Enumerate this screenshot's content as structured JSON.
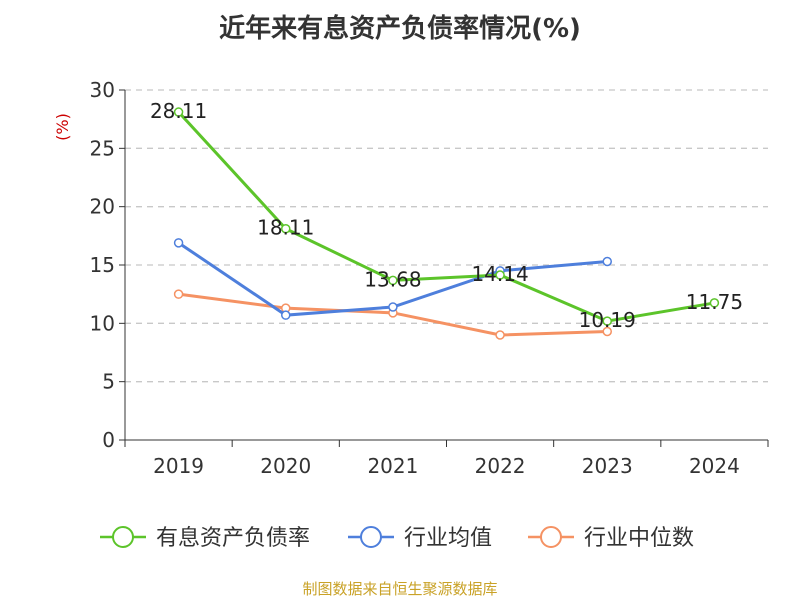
{
  "title": "近年来有息资产负债率情况(%)",
  "source": "制图数据来自恒生聚源数据库",
  "chart_data": {
    "type": "line",
    "title": "近年来有息资产负债率情况(%)",
    "ylabel": "(%)",
    "ylim": [
      0,
      30
    ],
    "yticks": [
      0,
      5,
      10,
      15,
      20,
      25,
      30
    ],
    "categories": [
      "2019",
      "2020",
      "2021",
      "2022",
      "2023",
      "2024"
    ],
    "grid": true,
    "legend_position": "bottom",
    "series": [
      {
        "name": "有息资产负债率",
        "color": "#5cc42a",
        "values": [
          28.11,
          18.11,
          13.68,
          14.14,
          10.19,
          11.75
        ],
        "labels": [
          "28.11",
          "18.11",
          "13.68",
          "14.14",
          "10.19",
          "11.75"
        ]
      },
      {
        "name": "行业均值",
        "color": "#4e7fdc",
        "values": [
          16.9,
          10.7,
          11.4,
          14.5,
          15.3,
          null
        ]
      },
      {
        "name": "行业中位数",
        "color": "#f59263",
        "values": [
          12.5,
          11.3,
          10.9,
          9.0,
          9.3,
          null
        ]
      }
    ]
  }
}
